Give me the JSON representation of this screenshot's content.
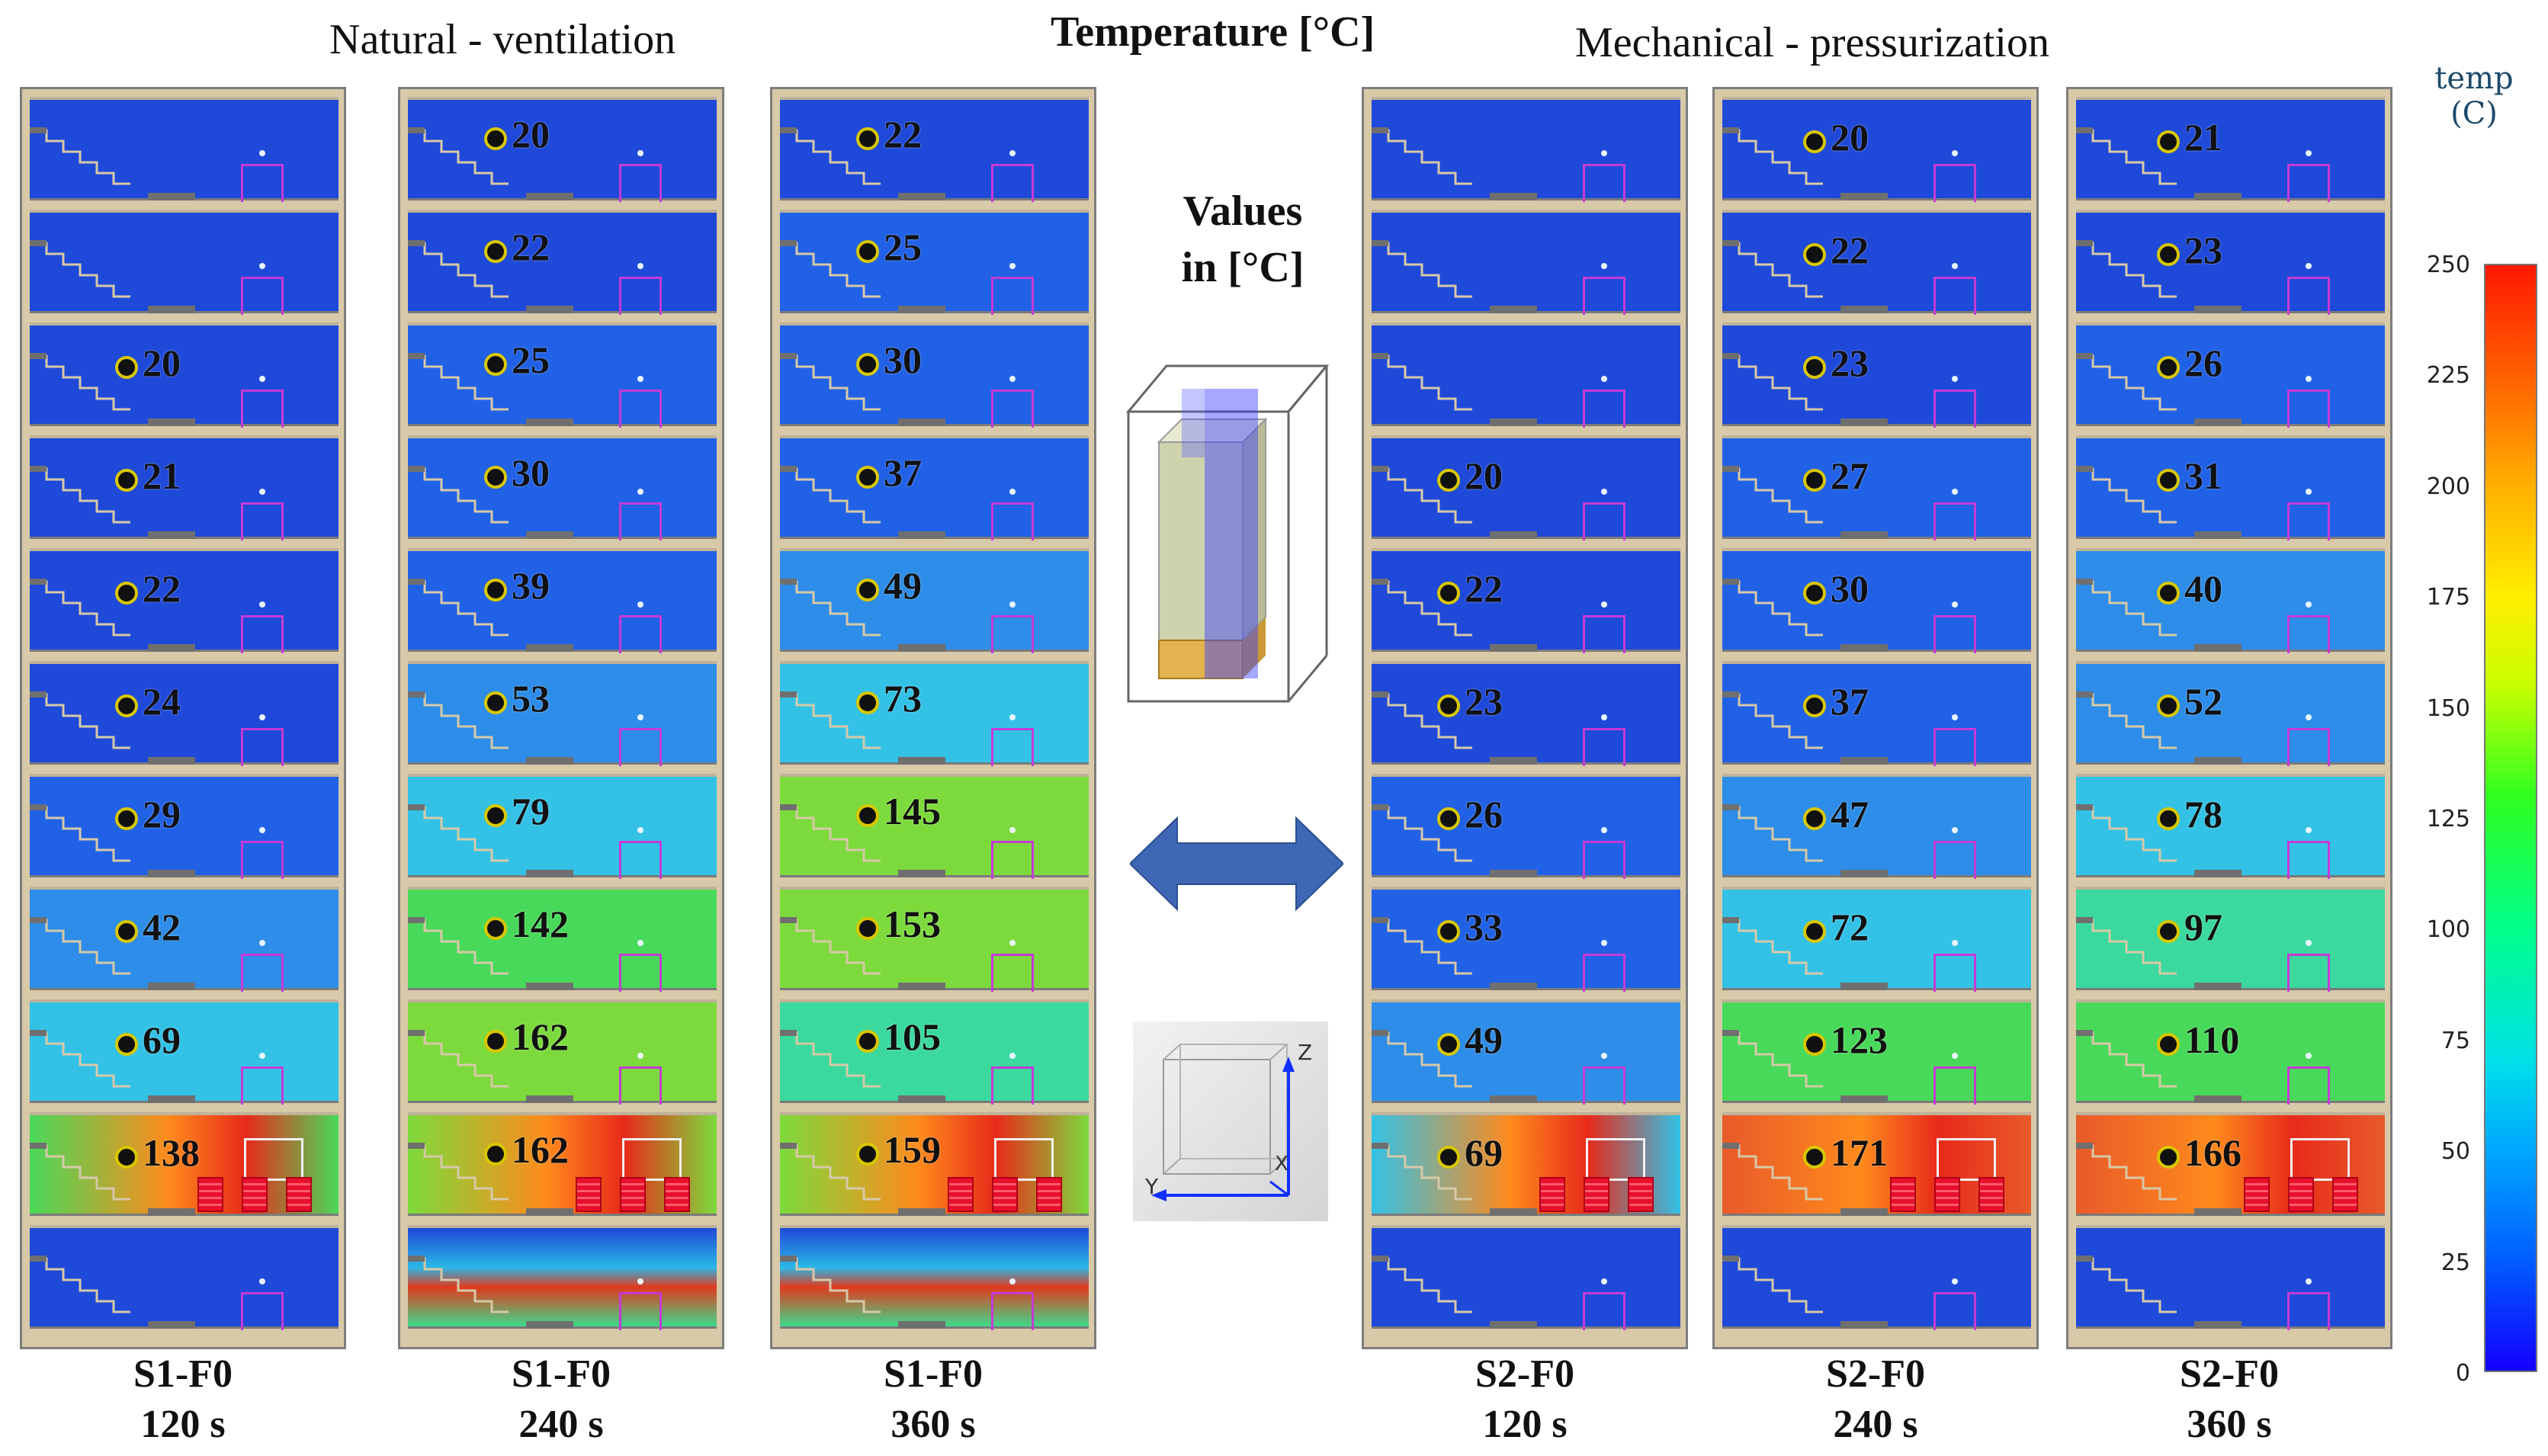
{
  "headings": {
    "natural": "Natural - ventilation",
    "temperature": "Temperature [°C]",
    "mechanical": "Mechanical  - pressurization"
  },
  "center_note": {
    "line1": "Values",
    "line2": "in [°C]"
  },
  "axes_labels": {
    "z": "Z",
    "y": "Y",
    "x": "X"
  },
  "colorbar": {
    "title_line1": "temp",
    "title_line2": "(C)",
    "ticks": [
      "250",
      "225",
      "200",
      "175",
      "150",
      "125",
      "100",
      "75",
      "50",
      "25",
      "0"
    ]
  },
  "panels": [
    {
      "scenario": "S1-F0",
      "time": "120 s",
      "values": [
        "",
        "",
        "20",
        "21",
        "22",
        "24",
        "29",
        "42",
        "69",
        "138"
      ]
    },
    {
      "scenario": "S1-F0",
      "time": "240 s",
      "values": [
        "20",
        "22",
        "25",
        "30",
        "39",
        "53",
        "79",
        "142",
        "162",
        "162"
      ]
    },
    {
      "scenario": "S1-F0",
      "time": "360 s",
      "values": [
        "22",
        "25",
        "30",
        "37",
        "49",
        "73",
        "145",
        "153",
        "105",
        "159"
      ]
    },
    {
      "scenario": "S2-F0",
      "time": "120 s",
      "values": [
        "",
        "",
        "",
        "20",
        "22",
        "23",
        "26",
        "33",
        "49",
        "69"
      ]
    },
    {
      "scenario": "S2-F0",
      "time": "240 s",
      "values": [
        "20",
        "22",
        "23",
        "27",
        "30",
        "37",
        "47",
        "72",
        "123",
        "171"
      ]
    },
    {
      "scenario": "S2-F0",
      "time": "360 s",
      "values": [
        "21",
        "23",
        "26",
        "31",
        "40",
        "52",
        "78",
        "97",
        "110",
        "166"
      ]
    }
  ]
}
